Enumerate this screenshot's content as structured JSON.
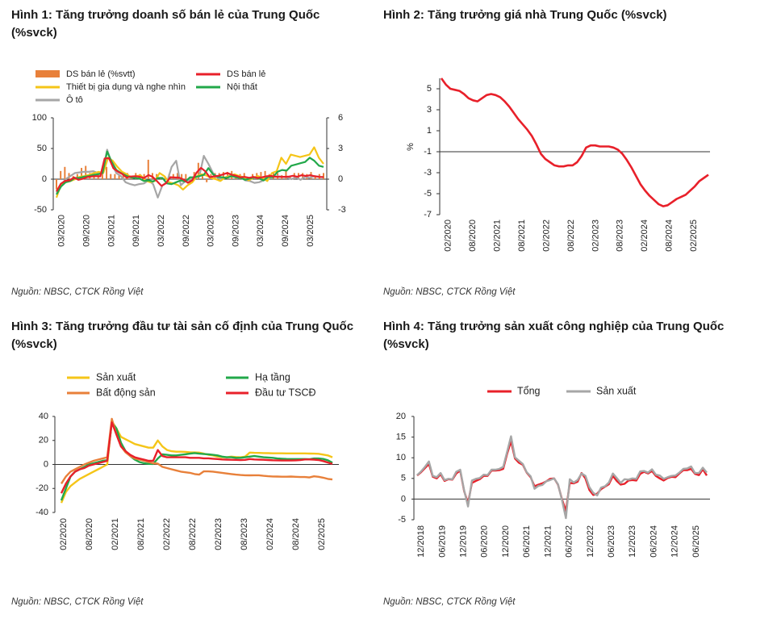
{
  "panels": [
    {
      "title": "Hình 1: Tăng trưởng doanh số bán lẻ của Trung Quốc (%svck)",
      "source": "Nguồn: NBSC, CTCK Rồng Việt"
    },
    {
      "title": "Hình 2: Tăng trưởng giá nhà Trung Quốc (%svck)",
      "source": "Nguồn: NBSC, CTCK Rồng Việt"
    },
    {
      "title": "Hình 3: Tăng trưởng đầu tư tài sản cố định của Trung Quốc (%svck)",
      "source": "Nguồn: NBSC, CTCK Rồng Việt"
    },
    {
      "title": "Hình 4: Tăng trưởng sản xuất công nghiệp của Trung Quốc (%svck)",
      "source": "Nguồn: NBSC, CTCK Rồng Việt"
    }
  ],
  "chart_data": [
    {
      "type": "bar",
      "ylim": [
        -50,
        100
      ],
      "yticks": [
        -50,
        0,
        50,
        100
      ],
      "y2lim": [
        -3,
        6
      ],
      "y2ticks": [
        -3,
        0,
        3,
        6
      ],
      "xticklabels": [
        "03/2020",
        "09/2020",
        "03/2021",
        "09/2021",
        "03/2022",
        "09/2022",
        "03/2023",
        "09/2023",
        "03/2024",
        "09/2024",
        "03/2025"
      ],
      "legend_position": "top-left",
      "colors": {
        "bar": "#E8803A",
        "ds": "#E8202A",
        "tbgd": "#F5C518",
        "nt": "#22A84A",
        "oto": "#A6A6A6"
      },
      "series": [
        {
          "name": "DS bán lẻ (%svtt)",
          "axis": "right",
          "type": "bar",
          "values": [
            -1,
            0.8,
            1.2,
            0.6,
            0.3,
            0.5,
            1.1,
            1.3,
            0.6,
            0.6,
            0.7,
            0.7,
            1.2,
            0.5,
            0.5,
            0.4,
            0.5,
            0.6,
            0.3,
            0.6,
            0.5,
            0.5,
            1.9,
            0.6,
            0.5,
            0.2,
            0.3,
            0.5,
            0.5,
            0.6,
            0.5,
            0.5,
            -0.5,
            0.7,
            1.6,
            0.3,
            -0.3,
            0.5,
            0.6,
            0.6,
            0.7,
            0.7,
            0.8,
            0.5,
            0.5,
            0.6,
            0.2,
            0.5,
            0.6,
            0.7,
            0.8,
            0.5,
            0.6,
            0.6,
            0.4,
            0.8,
            0.3,
            0.6,
            0.6,
            0.6,
            0.5,
            0.7,
            0.2,
            0.5,
            0.6
          ]
        },
        {
          "name": "DS bán lẻ",
          "axis": "left",
          "type": "line",
          "values": [
            -20,
            -7.5,
            -2.8,
            -1.8,
            2.8,
            -1.1,
            0.5,
            3.3,
            4.3,
            5,
            4.6,
            33.8,
            34.2,
            17.7,
            12.4,
            8.5,
            2.5,
            4.4,
            4.9,
            3.9,
            1.7,
            6.7,
            3.5,
            -3.5,
            -11.1,
            -6.7,
            3.1,
            2.7,
            2.5,
            -0.5,
            -5.9,
            -1.8,
            10.6,
            18.4,
            12.7,
            3.1,
            4.6,
            5.5,
            7.6,
            10.1,
            7.4,
            5.5,
            3.1,
            3.7,
            2.3,
            3.7,
            2,
            3.2,
            4.8,
            5.3,
            4,
            3.7,
            3.8,
            4.1,
            5.5,
            4,
            6.4,
            5.1,
            6.4,
            4.8,
            3.7,
            3.4
          ]
        },
        {
          "name": "Thiết bị gia dụng và nghe nhìn",
          "axis": "left",
          "type": "line",
          "values": [
            -30,
            -8,
            -5,
            -3,
            0,
            4,
            5,
            7,
            10,
            12,
            10,
            35,
            30,
            20,
            12,
            8,
            3,
            5,
            6,
            -2,
            -5,
            -3,
            10,
            5,
            -5,
            -7,
            -10,
            -17,
            -10,
            -5,
            5,
            8,
            6,
            2,
            0,
            -3,
            3,
            5,
            8,
            5,
            3,
            -2,
            2,
            5,
            2,
            -3,
            10,
            13,
            35,
            25,
            40,
            38,
            36,
            38,
            40,
            52,
            35,
            25
          ]
        },
        {
          "name": "Nội thất",
          "axis": "left",
          "type": "line",
          "values": [
            -25,
            -12,
            -5,
            -3,
            2,
            2,
            4,
            5,
            7,
            8,
            10,
            45,
            28,
            15,
            10,
            6,
            3,
            2,
            1,
            -3,
            -2,
            -4,
            2,
            2,
            -7,
            -8,
            -5,
            -2,
            -4,
            3,
            3,
            5,
            7,
            18,
            8,
            4,
            3,
            2,
            5,
            3,
            2,
            -1,
            1,
            3,
            1,
            -2,
            4,
            3,
            12,
            15,
            14,
            22,
            24,
            26,
            28,
            35,
            30,
            22,
            20
          ]
        },
        {
          "name": "Ô tô",
          "axis": "left",
          "type": "line",
          "values": [
            -22,
            -10,
            0,
            5,
            10,
            11,
            12,
            12,
            13,
            10,
            12,
            48,
            25,
            10,
            5,
            -5,
            -8,
            -10,
            -8,
            -7,
            -2,
            -8,
            -30,
            -10,
            -5,
            20,
            30,
            -10,
            -3,
            -1,
            5,
            4,
            38,
            25,
            10,
            2,
            0,
            4,
            7,
            5,
            3,
            -2,
            -3,
            -6,
            -5,
            -2,
            2,
            4,
            5,
            4,
            3,
            0,
            3,
            -1,
            4,
            2,
            5,
            4,
            3
          ]
        }
      ]
    },
    {
      "type": "line",
      "ylabel": "%",
      "ylim": [
        -7,
        6
      ],
      "yticks": [
        -7,
        -5,
        -3,
        -1,
        1,
        3,
        5
      ],
      "xticklabels": [
        "02/2020",
        "08/2020",
        "02/2021",
        "08/2021",
        "02/2022",
        "08/2022",
        "02/2023",
        "08/2023",
        "02/2024",
        "08/2024",
        "02/2025"
      ],
      "colors": {
        "line": "#E8202A"
      },
      "series": [
        {
          "name": "",
          "values": [
            6,
            5.4,
            5,
            4.9,
            4.8,
            4.5,
            4.1,
            3.9,
            3.8,
            4.1,
            4.4,
            4.5,
            4.4,
            4.2,
            3.8,
            3.3,
            2.7,
            2.1,
            1.6,
            1.1,
            0.5,
            -0.3,
            -1.2,
            -1.7,
            -2,
            -2.3,
            -2.4,
            -2.4,
            -2.3,
            -2.3,
            -2,
            -1.4,
            -0.6,
            -0.4,
            -0.4,
            -0.5,
            -0.5,
            -0.5,
            -0.6,
            -0.8,
            -1.2,
            -1.8,
            -2.5,
            -3.3,
            -4.1,
            -4.7,
            -5.2,
            -5.6,
            -6,
            -6.2,
            -6.1,
            -5.8,
            -5.5,
            -5.3,
            -5.1,
            -4.7,
            -4.3,
            -3.8,
            -3.5,
            -3.2
          ]
        }
      ]
    },
    {
      "type": "line",
      "ylim": [
        -40,
        40
      ],
      "yticks": [
        -40,
        -20,
        0,
        20,
        40
      ],
      "xticklabels": [
        "02/2020",
        "08/2020",
        "02/2021",
        "08/2021",
        "02/2022",
        "08/2022",
        "02/2023",
        "08/2023",
        "02/2024",
        "08/2024",
        "02/2025"
      ],
      "legend_position": "top",
      "colors": {
        "sx": "#F5C518",
        "ht": "#22A84A",
        "bds": "#E8803A",
        "dt": "#E8202A"
      },
      "series": [
        {
          "name": "Sản xuất",
          "values": [
            -32,
            -23,
            -18,
            -15,
            -12,
            -10,
            -8,
            -6,
            -4,
            -2,
            0,
            36,
            30,
            23,
            21,
            19,
            17,
            16,
            15,
            14,
            14,
            20,
            15,
            12,
            11,
            10.6,
            10.6,
            10.4,
            10.1,
            10,
            9.9,
            9,
            8.1,
            7.5,
            6.5,
            6,
            6,
            6.5,
            6.2,
            6,
            6.5,
            9.9,
            9.7,
            9.6,
            9.5,
            9.4,
            9.3,
            9.3,
            9.3,
            9.2,
            9.2,
            9.2,
            9.2,
            9.2,
            9.1,
            9,
            8.9,
            8.2,
            7.5,
            6
          ]
        },
        {
          "name": "Hạ tầng",
          "values": [
            -30,
            -20,
            -10,
            -6,
            -4,
            -2,
            0,
            1,
            2,
            3,
            3.5,
            35,
            30,
            18,
            11,
            7,
            4,
            2,
            1,
            0.5,
            0.4,
            5,
            8.5,
            8,
            7.5,
            7.5,
            8,
            8.5,
            9,
            9.5,
            9,
            8.7,
            8.5,
            8,
            7.5,
            6.5,
            6,
            6,
            5.5,
            5.5,
            6,
            6.5,
            7,
            6.5,
            6,
            5.8,
            5.5,
            5,
            4.8,
            4.6,
            4.5,
            4.5,
            4.5,
            4.5,
            4.4,
            5,
            5,
            4.6,
            3.5,
            1.5
          ]
        },
        {
          "name": "Bất động sản",
          "values": [
            -16,
            -10,
            -6,
            -4,
            -2,
            0,
            1.5,
            3,
            4,
            5,
            6,
            38,
            25,
            15,
            10,
            7,
            5,
            4,
            3,
            2,
            1,
            0.7,
            -2,
            -3,
            -4,
            -5,
            -6,
            -6.5,
            -7,
            -8,
            -8.5,
            -5.8,
            -5.8,
            -6,
            -6.5,
            -7,
            -7.5,
            -8,
            -8.5,
            -8.8,
            -9,
            -9.1,
            -9,
            -9,
            -9.5,
            -9.8,
            -10,
            -10.1,
            -10.2,
            -10.2,
            -10.1,
            -10.3,
            -10.5,
            -10.5,
            -10.8,
            -9.9,
            -10.3,
            -11,
            -12,
            -12.5
          ]
        },
        {
          "name": "Đầu tư TSCĐ",
          "values": [
            -24,
            -16,
            -10,
            -6,
            -4,
            -3,
            -1,
            0,
            1,
            2,
            3,
            35,
            25,
            15,
            11,
            8,
            6,
            5,
            4,
            3,
            3,
            12,
            7,
            6,
            6,
            6,
            6,
            6,
            5.5,
            5.5,
            5.5,
            5.1,
            5.1,
            4.8,
            4.5,
            4.2,
            4,
            3.9,
            3.8,
            3.6,
            3.8,
            4.5,
            4.2,
            4,
            3.9,
            3.7,
            3.5,
            3.4,
            3.3,
            3.3,
            3.3,
            3.4,
            3.6,
            4.2,
            4.2,
            4,
            3.7,
            2.8,
            1.6,
            0.5
          ]
        }
      ]
    },
    {
      "type": "line",
      "ylim": [
        -5,
        20
      ],
      "yticks": [
        -5,
        0,
        5,
        10,
        15,
        20
      ],
      "xticklabels": [
        "12/2018",
        "06/2019",
        "12/2019",
        "06/2020",
        "12/2020",
        "06/2021",
        "12/2021",
        "06/2022",
        "12/2022",
        "06/2023",
        "12/2023",
        "06/2024",
        "12/2024",
        "06/2025"
      ],
      "legend_position": "top",
      "colors": {
        "tong": "#E8202A",
        "sx": "#A6A6A6"
      },
      "series": [
        {
          "name": "Tổng",
          "values": [
            5.7,
            6.5,
            7.5,
            8.5,
            5.4,
            5,
            6,
            4.4,
            4.8,
            4.7,
            6.2,
            6.9,
            2,
            -1,
            3.9,
            4.4,
            4.8,
            5.6,
            5.6,
            6.9,
            6.9,
            7,
            7.3,
            11,
            14,
            9.8,
            8.8,
            8.3,
            6.4,
            5.3,
            3.1,
            3.5,
            3.8,
            4.3,
            4.9,
            5,
            3.5,
            0,
            -2.9,
            3.9,
            3.8,
            4.2,
            6.3,
            5,
            2.2,
            1,
            1.3,
            2.4,
            3,
            3.6,
            5.6,
            4.4,
            3.5,
            3.7,
            4.5,
            4.6,
            4.5,
            6.1,
            6.6,
            6.2,
            6.8,
            5.6,
            5,
            4.5,
            5.1,
            5.4,
            5.3,
            6.2,
            7,
            7,
            7.3,
            6.1,
            5.8,
            7.2,
            5.7
          ]
        },
        {
          "name": "Sản xuất",
          "values": [
            5.8,
            6.7,
            7.8,
            9.1,
            5.6,
            5.3,
            6.3,
            4.6,
            4.9,
            4.8,
            6.6,
            7.1,
            2.2,
            -1.8,
            4.5,
            4.9,
            5.1,
            5.9,
            5.8,
            7.1,
            7.1,
            7.3,
            7.8,
            11.5,
            15.2,
            10.1,
            9.3,
            8.5,
            6.5,
            5.5,
            2.5,
            3.2,
            3.4,
            4.3,
            4.6,
            5,
            3.6,
            -0.2,
            -4.6,
            4.8,
            4,
            4.6,
            6.2,
            5.6,
            2.9,
            1.5,
            0.9,
            2.8,
            3.1,
            4,
            6.2,
            5.1,
            3.9,
            4.8,
            4.7,
            5,
            4.9,
            6.7,
            6.8,
            6.4,
            7.2,
            5.9,
            5.7,
            4.9,
            5.3,
            5.6,
            5.7,
            6.4,
            7.3,
            7.4,
            7.9,
            6.3,
            6.3,
            7.6,
            6.4
          ]
        }
      ]
    }
  ]
}
